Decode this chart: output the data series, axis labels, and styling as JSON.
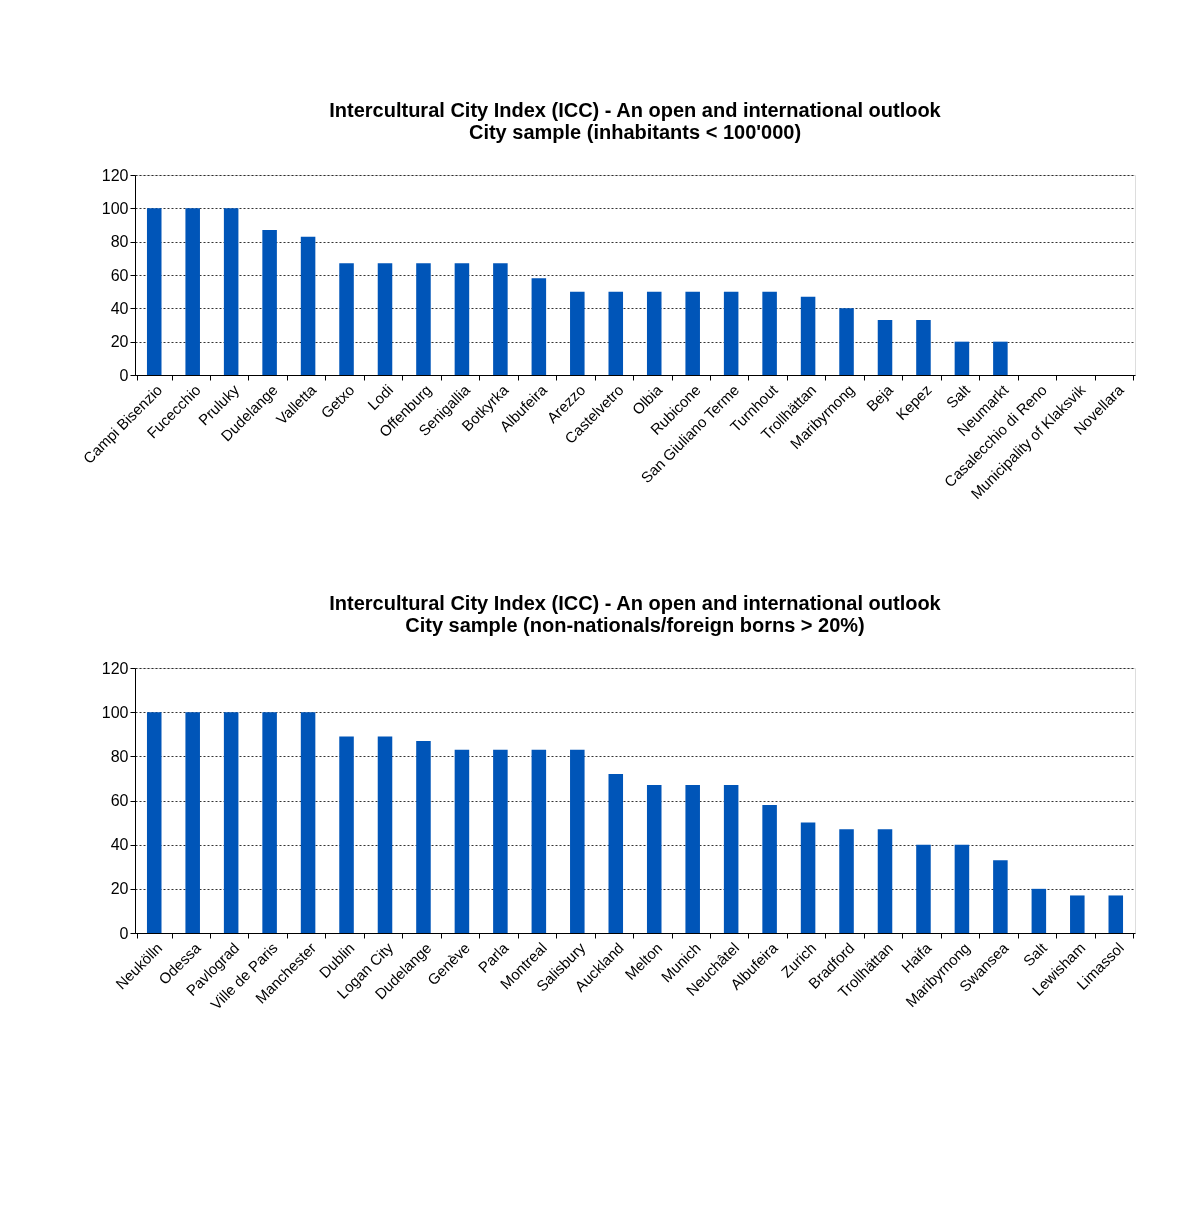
{
  "chart_data": [
    {
      "type": "bar",
      "title": "Intercultural City Index (ICC) - An open and international outlook",
      "subtitle": "City sample (inhabitants < 100'000)",
      "categories": [
        "Campi Bisenzio",
        "Fucecchio",
        "Pruluky",
        "Dudelange",
        "Valletta",
        "Getxo",
        "Lodi",
        "Offenburg",
        "Senigallia",
        "Botkyrka",
        "Albufeira",
        "Arezzo",
        "Castelvetro",
        "Olbia",
        "Rubicone",
        "San Giuliano Terme",
        "Turnhout",
        "Trollhättan",
        "Maribyrnong",
        "Beja",
        "Kepez",
        "Salt",
        "Neumarkt",
        "Casalecchio di Reno",
        "Municipality of Klaksvik",
        "Novellara"
      ],
      "values": [
        100,
        100,
        100,
        87,
        83,
        67,
        67,
        67,
        67,
        67,
        58,
        50,
        50,
        50,
        50,
        50,
        50,
        47,
        40,
        33,
        33,
        20,
        20,
        0,
        0,
        0
      ],
      "color": "#0055b8",
      "ylim": [
        0,
        120
      ],
      "yticks": [
        0,
        20,
        40,
        60,
        80,
        100,
        120
      ],
      "grid": "y"
    },
    {
      "type": "bar",
      "title": "Intercultural City Index (ICC) - An open and international outlook",
      "subtitle": "City sample (non-nationals/foreign borns > 20%)",
      "categories": [
        "Neukölln",
        "Odessa",
        "Pavlograd",
        "Ville de Paris",
        "Manchester",
        "Dublin",
        "Logan City",
        "Dudelange",
        "Genève",
        "Parla",
        "Montreal",
        "Salisbury",
        "Auckland",
        "Melton",
        "Munich",
        "Neuchâtel",
        "Albufeira",
        "Zurich",
        "Bradford",
        "Trollhättan",
        "Haifa",
        "Maribyrnong",
        "Swansea",
        "Salt",
        "Lewisham",
        "Limassol"
      ],
      "values": [
        100,
        100,
        100,
        100,
        100,
        89,
        89,
        87,
        83,
        83,
        83,
        83,
        72,
        67,
        67,
        67,
        58,
        50,
        47,
        47,
        40,
        40,
        33,
        20,
        17,
        17
      ],
      "color": "#0055b8",
      "ylim": [
        0,
        120
      ],
      "yticks": [
        0,
        20,
        40,
        60,
        80,
        100,
        120
      ],
      "grid": "y"
    }
  ]
}
